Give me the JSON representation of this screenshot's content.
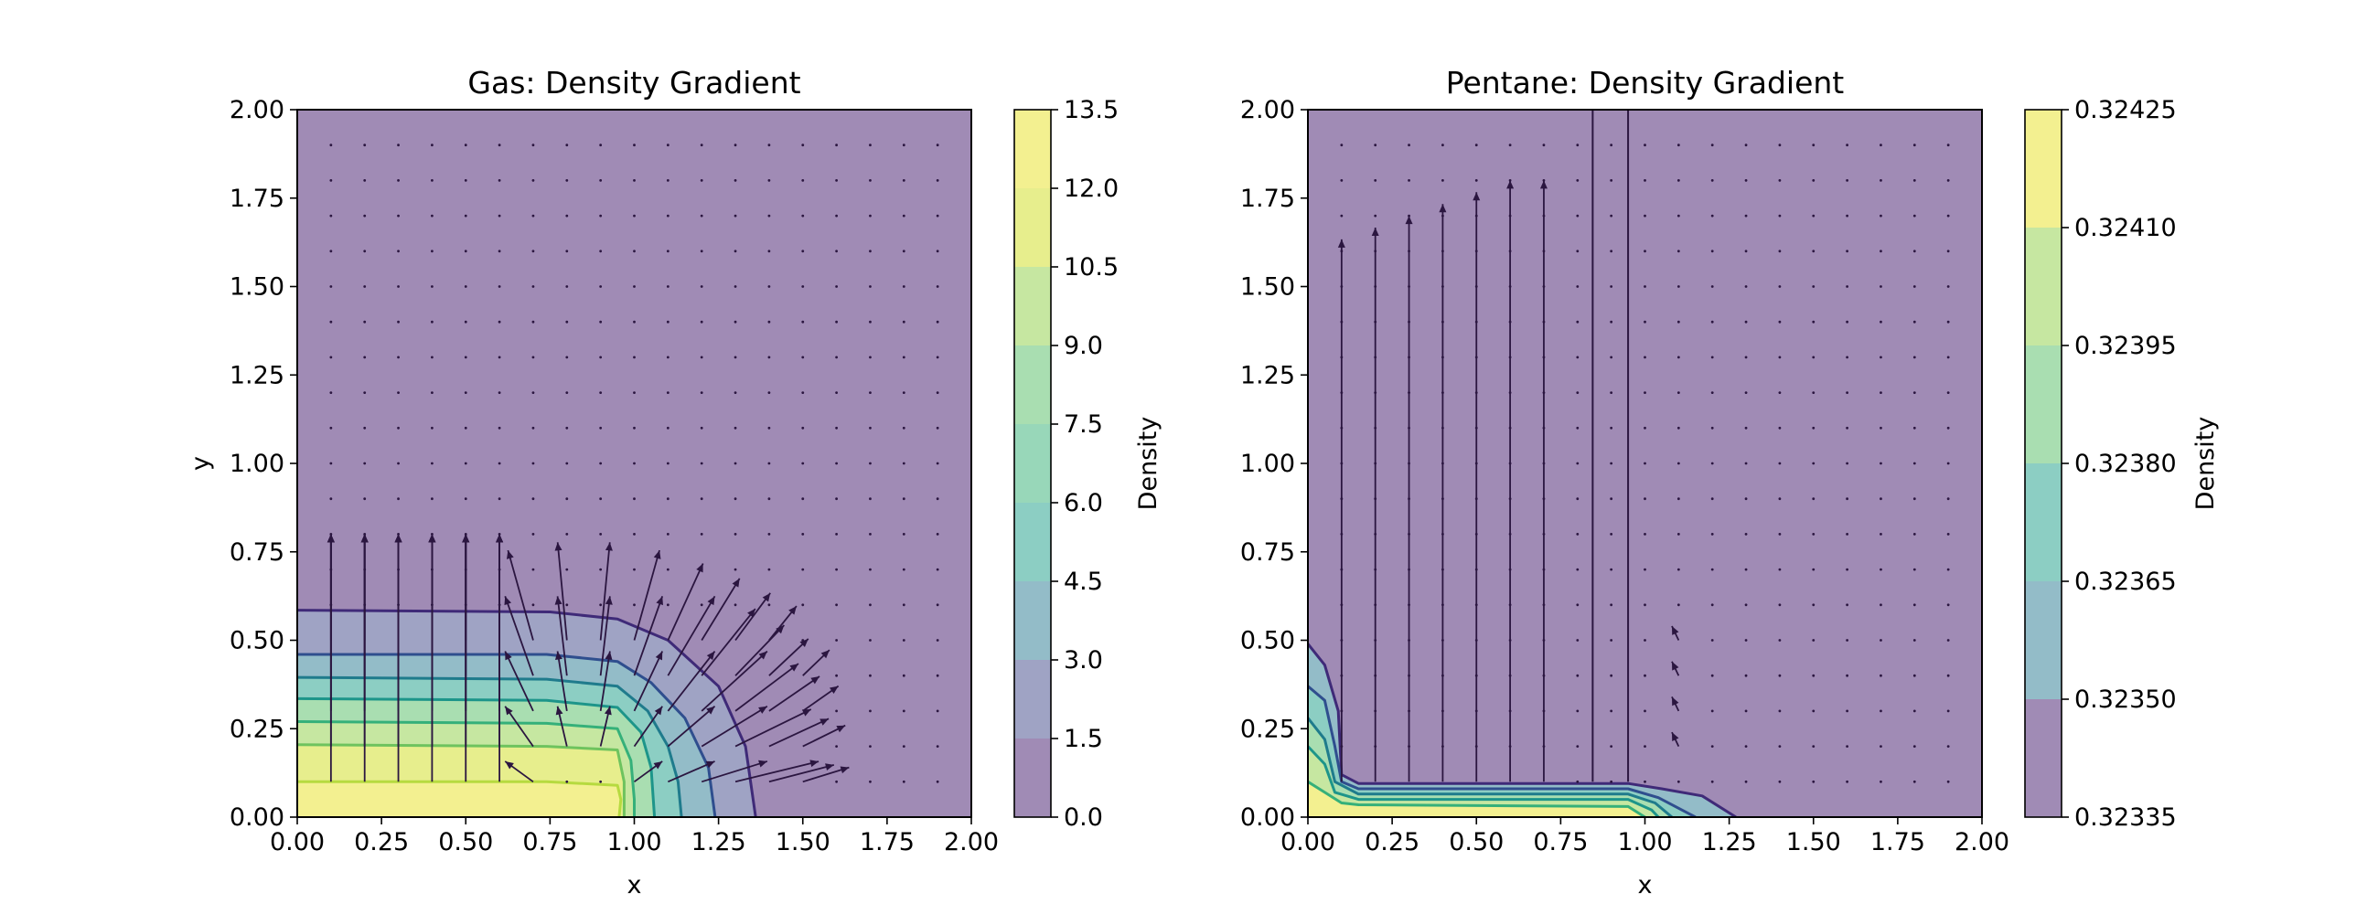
{
  "chart_data": [
    {
      "type": "contour",
      "title": "Gas: Density Gradient",
      "xlabel": "x",
      "ylabel": "y",
      "xlim": [
        0,
        2
      ],
      "ylim": [
        0,
        2
      ],
      "xticks": [
        "0.00",
        "0.25",
        "0.50",
        "0.75",
        "1.00",
        "1.25",
        "1.50",
        "1.75",
        "2.00"
      ],
      "yticks": [
        "0.00",
        "0.25",
        "0.50",
        "0.75",
        "1.00",
        "1.25",
        "1.50",
        "1.75",
        "2.00"
      ],
      "colorbar": {
        "label": "Density",
        "levels": [
          0.0,
          1.5,
          3.0,
          4.5,
          6.0,
          7.5,
          9.0,
          10.5,
          12.0,
          13.5
        ],
        "tick_labels": [
          "0.0",
          "1.5",
          "3.0",
          "4.5",
          "6.0",
          "7.5",
          "9.0",
          "10.5",
          "12.0",
          "13.5"
        ]
      },
      "contour_lines": [
        {
          "level": 1.5,
          "points": [
            [
              0,
              0.585
            ],
            [
              0.75,
              0.58
            ],
            [
              0.95,
              0.56
            ],
            [
              1.1,
              0.5
            ],
            [
              1.25,
              0.37
            ],
            [
              1.33,
              0.2
            ],
            [
              1.36,
              0
            ]
          ]
        },
        {
          "level": 3.0,
          "points": [
            [
              0,
              0.46
            ],
            [
              0.74,
              0.46
            ],
            [
              0.95,
              0.44
            ],
            [
              1.05,
              0.38
            ],
            [
              1.15,
              0.28
            ],
            [
              1.22,
              0.14
            ],
            [
              1.24,
              0
            ]
          ]
        },
        {
          "level": 4.5,
          "points": [
            [
              0,
              0.395
            ],
            [
              0.74,
              0.39
            ],
            [
              0.95,
              0.37
            ],
            [
              1.04,
              0.3
            ],
            [
              1.1,
              0.2
            ],
            [
              1.13,
              0.1
            ],
            [
              1.14,
              0
            ]
          ]
        },
        {
          "level": 6.0,
          "points": [
            [
              0,
              0.335
            ],
            [
              0.74,
              0.33
            ],
            [
              0.95,
              0.31
            ],
            [
              1.02,
              0.24
            ],
            [
              1.05,
              0.14
            ],
            [
              1.06,
              0
            ]
          ]
        },
        {
          "level": 7.5,
          "points": [
            [
              0,
              0.27
            ],
            [
              0.74,
              0.265
            ],
            [
              0.95,
              0.25
            ],
            [
              0.99,
              0.16
            ],
            [
              1.0,
              0.05
            ],
            [
              1.0,
              0
            ]
          ]
        },
        {
          "level": 9.0,
          "points": [
            [
              0,
              0.205
            ],
            [
              0.74,
              0.2
            ],
            [
              0.95,
              0.19
            ],
            [
              0.97,
              0.1
            ],
            [
              0.97,
              0
            ]
          ]
        },
        {
          "level": 10.5,
          "points": [
            [
              0,
              0.1
            ],
            [
              0.74,
              0.1
            ],
            [
              0.95,
              0.09
            ],
            [
              0.96,
              0.05
            ],
            [
              0.955,
              0
            ]
          ]
        }
      ],
      "vectors_note": "gradient arrows: vertical along x=0.1..0.65 reaching y≈0.8, radial fan near the x≈1.0 corner"
    },
    {
      "type": "contour",
      "title": "Pentane: Density Gradient",
      "xlabel": "x",
      "ylabel": "",
      "xlim": [
        0,
        2
      ],
      "ylim": [
        0,
        2
      ],
      "xticks": [
        "0.00",
        "0.25",
        "0.50",
        "0.75",
        "1.00",
        "1.25",
        "1.50",
        "1.75",
        "2.00"
      ],
      "yticks": [
        "0.00",
        "0.25",
        "0.50",
        "0.75",
        "1.00",
        "1.25",
        "1.50",
        "1.75",
        "2.00"
      ],
      "colorbar": {
        "label": "Density",
        "levels": [
          0.32335,
          0.3235,
          0.32365,
          0.3238,
          0.32395,
          0.3241,
          0.32425
        ],
        "tick_labels": [
          "0.32335",
          "0.32350",
          "0.32365",
          "0.32380",
          "0.32395",
          "0.32410",
          "0.32425"
        ]
      },
      "contour_lines": [
        {
          "level": 0.3235,
          "points": [
            [
              0,
              0.49
            ],
            [
              0.05,
              0.43
            ],
            [
              0.09,
              0.3
            ],
            [
              0.1,
              0.12
            ],
            [
              0.15,
              0.095
            ],
            [
              0.95,
              0.095
            ],
            [
              1.05,
              0.08
            ],
            [
              1.17,
              0.06
            ],
            [
              1.27,
              0
            ]
          ]
        },
        {
          "level": 0.32365,
          "points": [
            [
              0,
              0.37
            ],
            [
              0.05,
              0.33
            ],
            [
              0.08,
              0.2
            ],
            [
              0.1,
              0.1
            ],
            [
              0.15,
              0.08
            ],
            [
              0.95,
              0.08
            ],
            [
              1.04,
              0.055
            ],
            [
              1.15,
              0
            ]
          ]
        },
        {
          "level": 0.3238,
          "points": [
            [
              0,
              0.28
            ],
            [
              0.05,
              0.22
            ],
            [
              0.08,
              0.1
            ],
            [
              0.15,
              0.065
            ],
            [
              0.95,
              0.065
            ],
            [
              1.03,
              0.04
            ],
            [
              1.08,
              0
            ]
          ]
        },
        {
          "level": 0.32395,
          "points": [
            [
              0,
              0.2
            ],
            [
              0.05,
              0.15
            ],
            [
              0.08,
              0.07
            ],
            [
              0.15,
              0.05
            ],
            [
              0.95,
              0.05
            ],
            [
              1.02,
              0.02
            ],
            [
              1.04,
              0
            ]
          ]
        },
        {
          "level": 0.3241,
          "points": [
            [
              0,
              0.1
            ],
            [
              0.05,
              0.07
            ],
            [
              0.1,
              0.04
            ],
            [
              0.15,
              0.035
            ],
            [
              0.95,
              0.03
            ],
            [
              1.0,
              0
            ]
          ]
        }
      ],
      "vertical_lines_x": [
        0.845,
        0.95
      ],
      "vectors_note": "long vertical arrows at x=0.1..0.75 reaching y≈1.6–1.8, small arrows near x≈1.05–1.15"
    }
  ]
}
